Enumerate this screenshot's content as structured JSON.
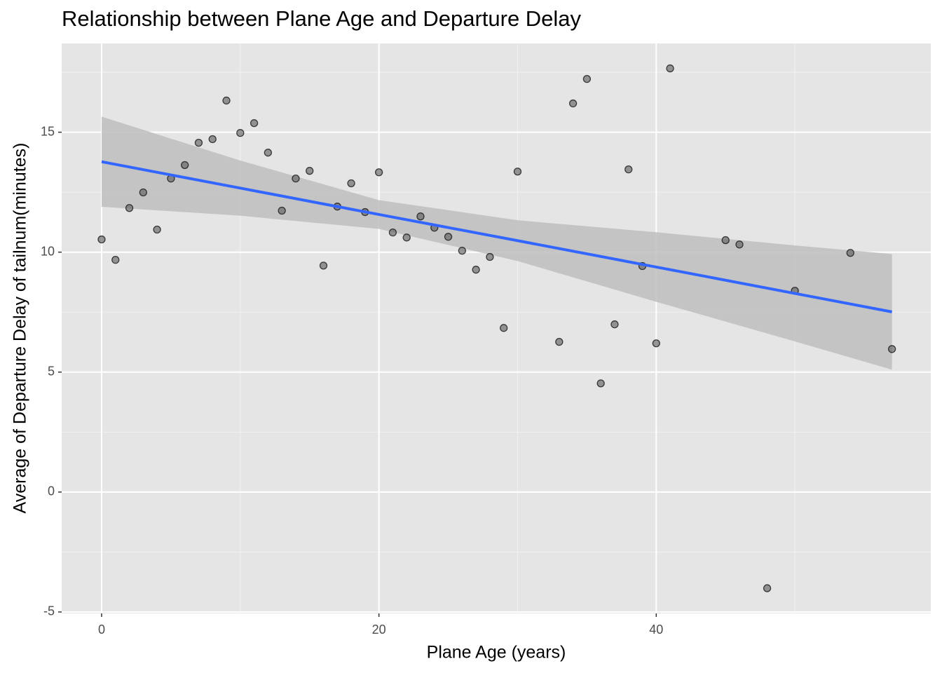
{
  "chart_data": {
    "type": "scatter",
    "title": "Relationship between Plane Age and Departure Delay",
    "x_label": "Plane Age (years)",
    "y_label": "Average of Departure Delay of tailnum(minutes)",
    "x": [
      0,
      1,
      2,
      3,
      4,
      5,
      6,
      7,
      8,
      9,
      10,
      11,
      12,
      13,
      14,
      15,
      16,
      17,
      18,
      19,
      20,
      21,
      22,
      23,
      24,
      25,
      26,
      27,
      28,
      29,
      30,
      33,
      34,
      35,
      36,
      37,
      38,
      39,
      40,
      41,
      45,
      46,
      48,
      50,
      54,
      57
    ],
    "values": [
      10.53,
      9.68,
      11.84,
      12.49,
      10.94,
      13.07,
      13.63,
      14.56,
      14.71,
      16.32,
      14.97,
      15.38,
      14.15,
      11.73,
      13.07,
      13.39,
      9.44,
      11.9,
      12.87,
      11.67,
      13.33,
      10.82,
      10.61,
      11.49,
      11.02,
      10.64,
      10.06,
      9.27,
      9.8,
      6.84,
      13.36,
      6.26,
      16.2,
      17.22,
      4.53,
      6.99,
      13.45,
      9.42,
      6.2,
      17.66,
      10.5,
      10.32,
      -4.01,
      8.39,
      9.97,
      5.96
    ],
    "point_color": "#595959",
    "smooth": {
      "color": "#3366ff",
      "band_color": "#bebebe",
      "x": [
        0,
        10,
        20,
        30,
        40,
        50,
        57
      ],
      "fit": [
        13.77,
        12.67,
        11.57,
        10.48,
        9.38,
        8.28,
        7.51
      ],
      "lower": [
        11.89,
        11.52,
        10.97,
        9.63,
        7.93,
        6.28,
        5.1
      ],
      "upper": [
        15.65,
        13.82,
        12.17,
        11.33,
        10.83,
        10.28,
        9.92
      ]
    },
    "xlim": [
      -2.88,
      59.8
    ],
    "ylim": [
      -5.06,
      18.7
    ],
    "xticks": [
      0,
      20,
      40
    ],
    "yticks": [
      -5,
      0,
      5,
      10,
      15
    ],
    "xminor": [
      10,
      30,
      50
    ],
    "yminor": [
      -2.5,
      2.5,
      7.5,
      12.5,
      17.5
    ],
    "grid": true
  }
}
